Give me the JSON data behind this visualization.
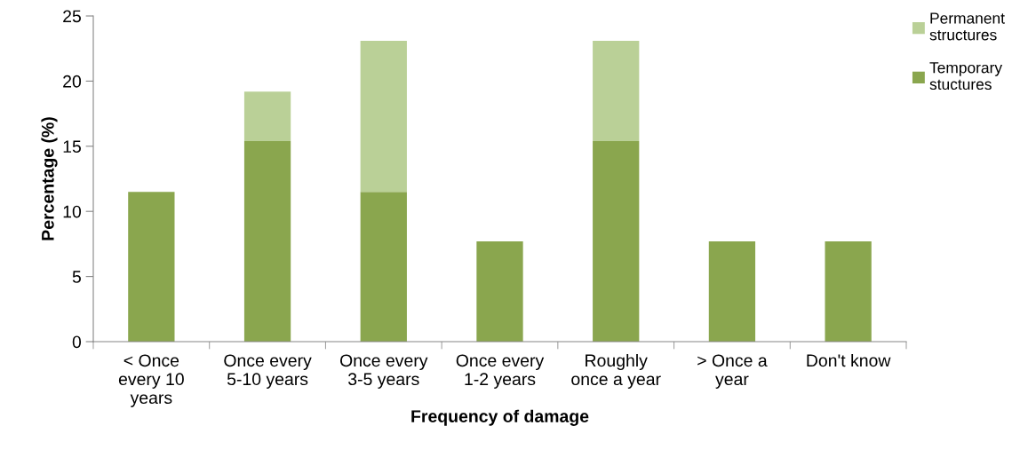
{
  "chart_data": {
    "type": "bar",
    "stacked": true,
    "xlabel": "Frequency of damage",
    "ylabel": "Percentage (%)",
    "categories": [
      "< Once\nevery 10\nyears",
      "Once every\n5-10 years",
      "Once every\n3-5 years",
      "Once every\n1-2 years",
      "Roughly\nonce a year",
      "> Once a\nyear",
      "Don't know"
    ],
    "series": [
      {
        "name": "Temporary\nstuctures",
        "color": "#8aa64e",
        "values": [
          11.5,
          15.4,
          11.5,
          7.7,
          15.4,
          7.7,
          7.7
        ]
      },
      {
        "name": "Permanent\nstructures",
        "color": "#bad097",
        "values": [
          0,
          3.8,
          11.6,
          0,
          7.7,
          0,
          0
        ]
      }
    ],
    "ylim": [
      0,
      25
    ],
    "yticks": [
      0,
      5,
      10,
      15,
      20,
      25
    ],
    "grid": false,
    "legend": "top right"
  }
}
